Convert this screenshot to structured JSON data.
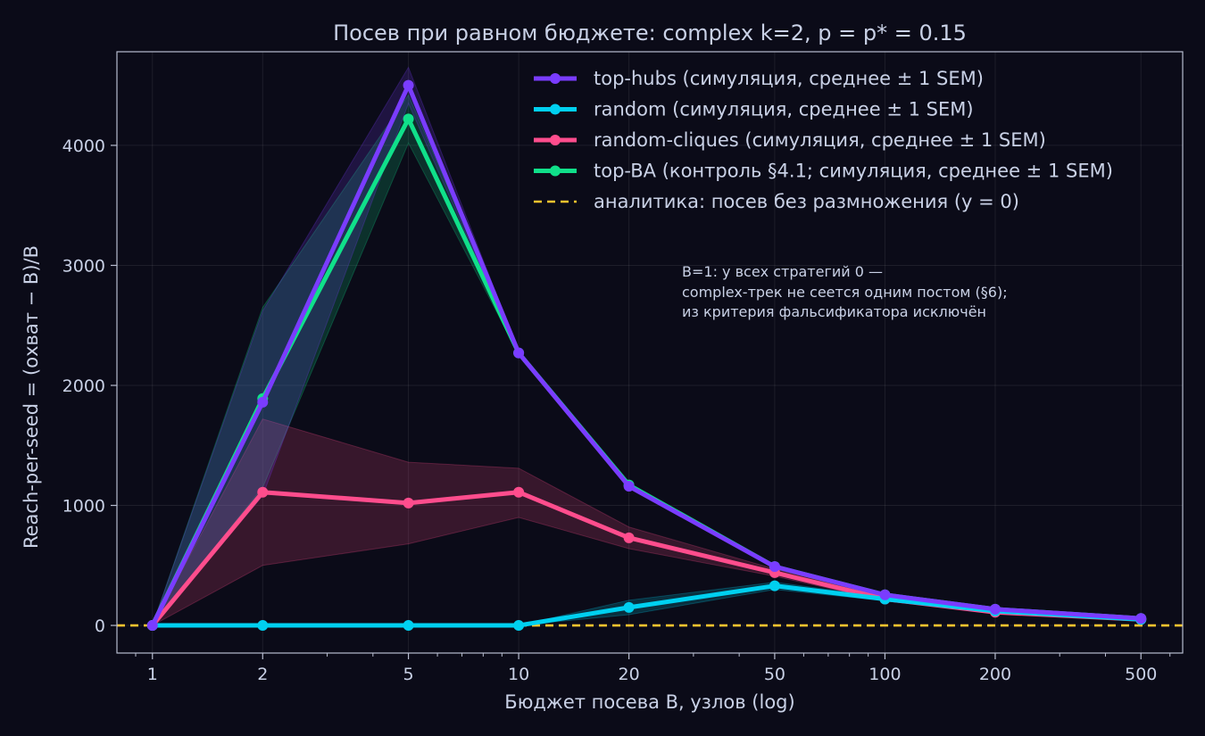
{
  "chart_data": {
    "type": "line",
    "title": "Посев при равном бюджете: complex k=2, p = p* = 0.15",
    "xlabel": "Бюджет посева B, узлов (log)",
    "ylabel": "Reach-per-seed = (охват − B)/B",
    "x_scale": "log",
    "xlim": [
      0.8,
      650
    ],
    "ylim": [
      -230,
      4780
    ],
    "grid": true,
    "legend_position": "top-right",
    "x_ticks": [
      1,
      2,
      5,
      10,
      20,
      50,
      100,
      200,
      500
    ],
    "x_tick_labels": [
      "1",
      "2",
      "5",
      "10",
      "20",
      "50",
      "100",
      "200",
      "500"
    ],
    "y_ticks": [
      0,
      1000,
      2000,
      3000,
      4000
    ],
    "y_tick_labels": [
      "0",
      "1000",
      "2000",
      "3000",
      "4000"
    ],
    "x": [
      1,
      2,
      5,
      10,
      20,
      50,
      100,
      200,
      500
    ],
    "series": [
      {
        "name": "top-BA (контроль §4.1; симуляция, среднее ± 1 SEM)",
        "color": "#10e08a",
        "values": [
          0,
          1890,
          4220,
          2270,
          1170,
          490,
          255,
          135,
          58
        ],
        "lower": [
          0,
          1150,
          4020,
          2260,
          1160,
          485,
          250,
          130,
          55
        ],
        "upper": [
          0,
          2650,
          4420,
          2280,
          1180,
          495,
          260,
          140,
          61
        ]
      },
      {
        "name": "random-cliques (симуляция, среднее ± 1 SEM)",
        "color": "#ff4d8d",
        "values": [
          0,
          1110,
          1020,
          1110,
          730,
          440,
          220,
          110,
          50
        ],
        "lower": [
          0,
          500,
          680,
          900,
          640,
          410,
          205,
          100,
          45
        ],
        "upper": [
          0,
          1720,
          1360,
          1310,
          820,
          470,
          235,
          120,
          55
        ]
      },
      {
        "name": "random (симуляция, среднее ± 1 SEM)",
        "color": "#00d0f0",
        "values": [
          0,
          0,
          0,
          0,
          150,
          330,
          220,
          120,
          50
        ],
        "lower": [
          0,
          0,
          0,
          0,
          90,
          300,
          205,
          110,
          45
        ],
        "upper": [
          0,
          0,
          0,
          0,
          210,
          360,
          235,
          130,
          55
        ]
      },
      {
        "name": "top-hubs (симуляция, среднее ± 1 SEM)",
        "color": "#7a3cff",
        "values": [
          0,
          1860,
          4500,
          2270,
          1160,
          490,
          255,
          135,
          58
        ],
        "lower": [
          0,
          1080,
          4350,
          2260,
          1150,
          485,
          250,
          130,
          55
        ],
        "upper": [
          0,
          2620,
          4650,
          2280,
          1170,
          495,
          260,
          140,
          61
        ]
      }
    ],
    "legend": [
      {
        "label": "top-hubs (симуляция, среднее ± 1 SEM)",
        "color": "#7a3cff",
        "style": "line-marker"
      },
      {
        "label": "random (симуляция, среднее ± 1 SEM)",
        "color": "#00d0f0",
        "style": "line-marker"
      },
      {
        "label": "random-cliques (симуляция, среднее ± 1 SEM)",
        "color": "#ff4d8d",
        "style": "line-marker"
      },
      {
        "label": "top-BA (контроль §4.1; симуляция, среднее ± 1 SEM)",
        "color": "#10e08a",
        "style": "line-marker"
      },
      {
        "label": "аналитика: посев без размножения (y = 0)",
        "color": "#ffc42e",
        "style": "dashed"
      }
    ],
    "reference_line": {
      "y": 0,
      "color": "#ffc42e"
    },
    "annotation": [
      "B=1: у всех стратегий 0 —",
      "complex-трек не сеется одним постом (§6);",
      "из критерия фальсификатора исключён"
    ]
  }
}
